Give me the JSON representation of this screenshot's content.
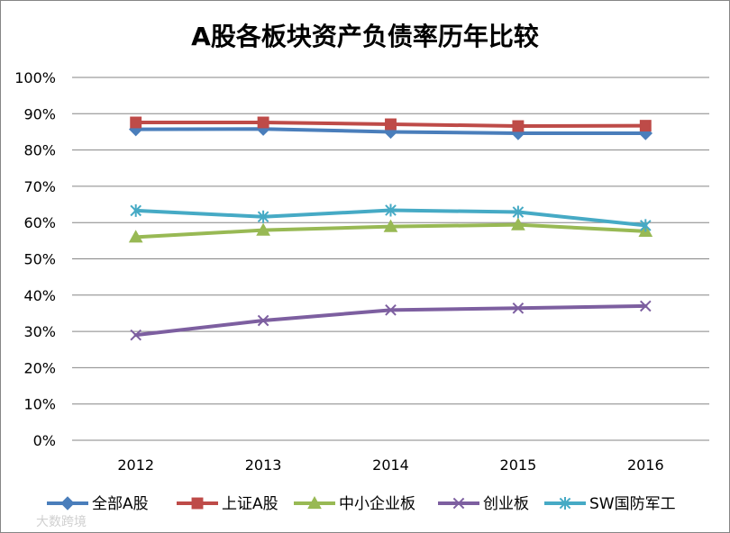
{
  "chart_data": {
    "type": "line",
    "title": "A股各板块资产负债率历年比较",
    "xlabel": "",
    "ylabel": "",
    "categories": [
      "2012",
      "2013",
      "2014",
      "2015",
      "2016"
    ],
    "ylim": [
      0,
      100
    ],
    "y_ticks": [
      "0%",
      "10%",
      "20%",
      "30%",
      "40%",
      "50%",
      "60%",
      "70%",
      "80%",
      "90%",
      "100%"
    ],
    "grid": true,
    "legend_position": "bottom",
    "series": [
      {
        "name": "全部A股",
        "color": "#4a7ebb",
        "marker": "diamond",
        "values": [
          85.7,
          85.8,
          85.0,
          84.6,
          84.6
        ]
      },
      {
        "name": "上证A股",
        "color": "#be4b48",
        "marker": "square",
        "values": [
          87.6,
          87.6,
          87.1,
          86.6,
          86.7
        ]
      },
      {
        "name": "中小企业板",
        "color": "#98b954",
        "marker": "triangle",
        "values": [
          56.0,
          57.9,
          58.9,
          59.4,
          57.6
        ]
      },
      {
        "name": "创业板",
        "color": "#7d5fa0",
        "marker": "x",
        "values": [
          29.0,
          33.0,
          35.9,
          36.4,
          37.0
        ]
      },
      {
        "name": "SW国防军工",
        "color": "#46aac5",
        "marker": "star",
        "values": [
          63.3,
          61.6,
          63.4,
          62.9,
          59.2
        ]
      }
    ]
  },
  "watermark": {
    "text": "大数跨境"
  }
}
